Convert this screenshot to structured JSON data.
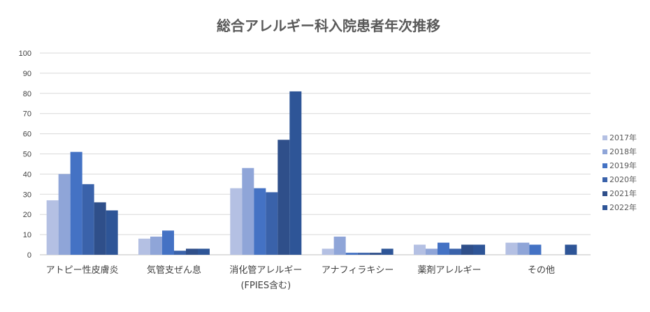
{
  "chart_data": {
    "type": "bar",
    "title": "総合アレルギー科入院患者年次推移",
    "xlabel": "",
    "ylabel": "",
    "ylim": [
      0,
      100
    ],
    "yticks": [
      0,
      10,
      20,
      30,
      40,
      50,
      60,
      70,
      80,
      90,
      100
    ],
    "grid": true,
    "legend_position": "right",
    "categories": [
      [
        "アトピー性皮膚炎"
      ],
      [
        "気管支ぜん息"
      ],
      [
        "消化管アレルギー",
        "(FPIES含む)"
      ],
      [
        "アナフィラキシー"
      ],
      [
        "薬剤アレルギー"
      ],
      [
        "その他"
      ]
    ],
    "series": [
      {
        "name": "2017年",
        "color": "#b4c0e3",
        "values": [
          27,
          8,
          33,
          3,
          5,
          6
        ]
      },
      {
        "name": "2018年",
        "color": "#8fa5d8",
        "values": [
          40,
          9,
          43,
          9,
          3,
          6
        ]
      },
      {
        "name": "2019年",
        "color": "#4472c4",
        "values": [
          51,
          12,
          33,
          1,
          6,
          5
        ]
      },
      {
        "name": "2020年",
        "color": "#3a62aa",
        "values": [
          35,
          2,
          31,
          1,
          3,
          0
        ]
      },
      {
        "name": "2021年",
        "color": "#2f4f8a",
        "values": [
          26,
          3,
          57,
          1,
          5,
          0
        ]
      },
      {
        "name": "2022年",
        "color": "#2e5597",
        "values": [
          22,
          3,
          81,
          3,
          5,
          5
        ]
      }
    ]
  }
}
